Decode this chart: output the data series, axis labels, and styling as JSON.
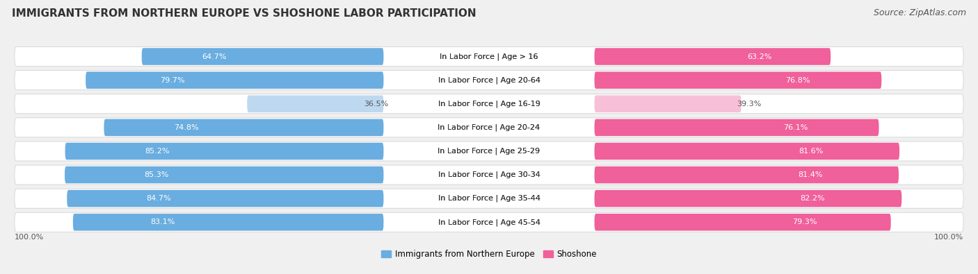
{
  "title": "IMMIGRANTS FROM NORTHERN EUROPE VS SHOSHONE LABOR PARTICIPATION",
  "source": "Source: ZipAtlas.com",
  "categories": [
    "In Labor Force | Age > 16",
    "In Labor Force | Age 20-64",
    "In Labor Force | Age 16-19",
    "In Labor Force | Age 20-24",
    "In Labor Force | Age 25-29",
    "In Labor Force | Age 30-34",
    "In Labor Force | Age 35-44",
    "In Labor Force | Age 45-54"
  ],
  "left_values": [
    64.7,
    79.7,
    36.5,
    74.8,
    85.2,
    85.3,
    84.7,
    83.1
  ],
  "right_values": [
    63.2,
    76.8,
    39.3,
    76.1,
    81.6,
    81.4,
    82.2,
    79.3
  ],
  "left_color_strong": "#6aade0",
  "left_color_light": "#bed8f0",
  "right_color_strong": "#f0609a",
  "right_color_light": "#f8c0d8",
  "label_left": "Immigrants from Northern Europe",
  "label_right": "Shoshone",
  "bg_color": "#f0f0f0",
  "row_bg": "#e8e8e8",
  "bar_bg": "#ffffff",
  "title_fontsize": 11,
  "source_fontsize": 9,
  "label_fontsize": 8,
  "value_fontsize": 8,
  "light_rows": [
    2
  ],
  "bottom_label": "100.0%"
}
